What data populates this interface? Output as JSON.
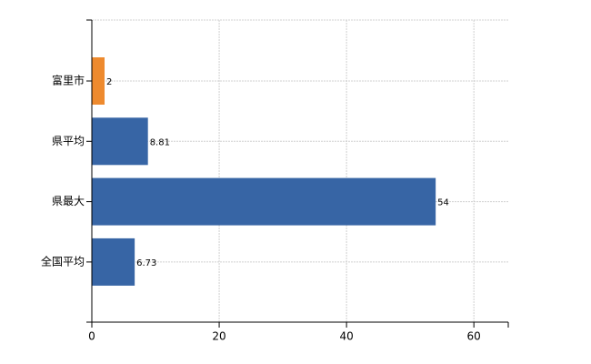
{
  "chart_data": {
    "type": "hbar",
    "categories": [
      "富里市",
      "県平均",
      "県最大",
      "全国平均"
    ],
    "values": [
      2,
      8.81,
      54,
      6.73
    ],
    "colors": [
      "#ee8a2e",
      "#3765a5",
      "#3765a5",
      "#3765a5"
    ],
    "xlim": [
      0,
      65.4
    ],
    "xticks": [
      0,
      20,
      40,
      60
    ],
    "grid": true,
    "data_labels": true
  }
}
